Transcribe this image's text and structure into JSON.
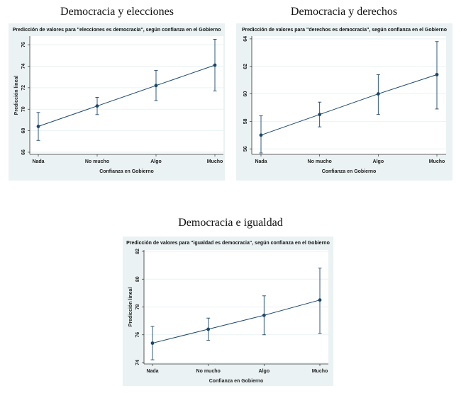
{
  "sections": [
    {
      "title": "Democracia y elecciones"
    },
    {
      "title": "Democracia y derechos"
    },
    {
      "title": "Democracia e igualdad"
    }
  ],
  "chart_data": [
    {
      "type": "line",
      "title": "Predicción de valores para \"elecciones es democracia\", según confianza en el Gobierno",
      "xlabel": "Confianza en Gobierno",
      "ylabel": "Predicción lineal",
      "categories": [
        "Nada",
        "No mucho",
        "Algo",
        "Mucho"
      ],
      "values": [
        68.4,
        70.3,
        72.2,
        74.1
      ],
      "ci_low": [
        67.1,
        69.5,
        70.8,
        71.7
      ],
      "ci_high": [
        69.7,
        71.1,
        73.6,
        76.5
      ],
      "yticks": [
        66,
        68,
        70,
        72,
        74,
        76
      ],
      "ylim": [
        65.8,
        76.8
      ],
      "colors": {
        "line": "#1a476f",
        "background": "#eaf2f3"
      }
    },
    {
      "type": "line",
      "title": "Predicción de valores para \"derechos es democracia\", según confianza en el Gobierno",
      "xlabel": "Confianza en Gobierno",
      "ylabel": "",
      "categories": [
        "Nada",
        "No mucho",
        "Algo",
        "Mucho"
      ],
      "values": [
        57.0,
        58.5,
        60.0,
        61.4
      ],
      "ci_low": [
        55.7,
        57.6,
        58.5,
        58.9
      ],
      "ci_high": [
        58.4,
        59.4,
        61.4,
        63.8
      ],
      "yticks": [
        56,
        58,
        60,
        62,
        64
      ],
      "ylim": [
        55.6,
        64.2
      ],
      "colors": {
        "line": "#1a476f",
        "background": "#eaf2f3"
      }
    },
    {
      "type": "line",
      "title": "Predicción de valores para \"igualdad es democracia\", según confianza en el Gobierno",
      "xlabel": "Confianza en Gobierno",
      "ylabel": "Predicción lineal",
      "categories": [
        "Nada",
        "No mucho",
        "Algo",
        "Mucho"
      ],
      "values": [
        75.4,
        76.4,
        77.4,
        78.5
      ],
      "ci_low": [
        74.2,
        75.6,
        76.0,
        76.1
      ],
      "ci_high": [
        76.6,
        77.2,
        78.8,
        80.8
      ],
      "yticks": [
        74,
        76,
        78,
        80,
        82
      ],
      "ylim": [
        73.9,
        82.1
      ],
      "colors": {
        "line": "#1a476f",
        "background": "#eaf2f3"
      }
    }
  ]
}
